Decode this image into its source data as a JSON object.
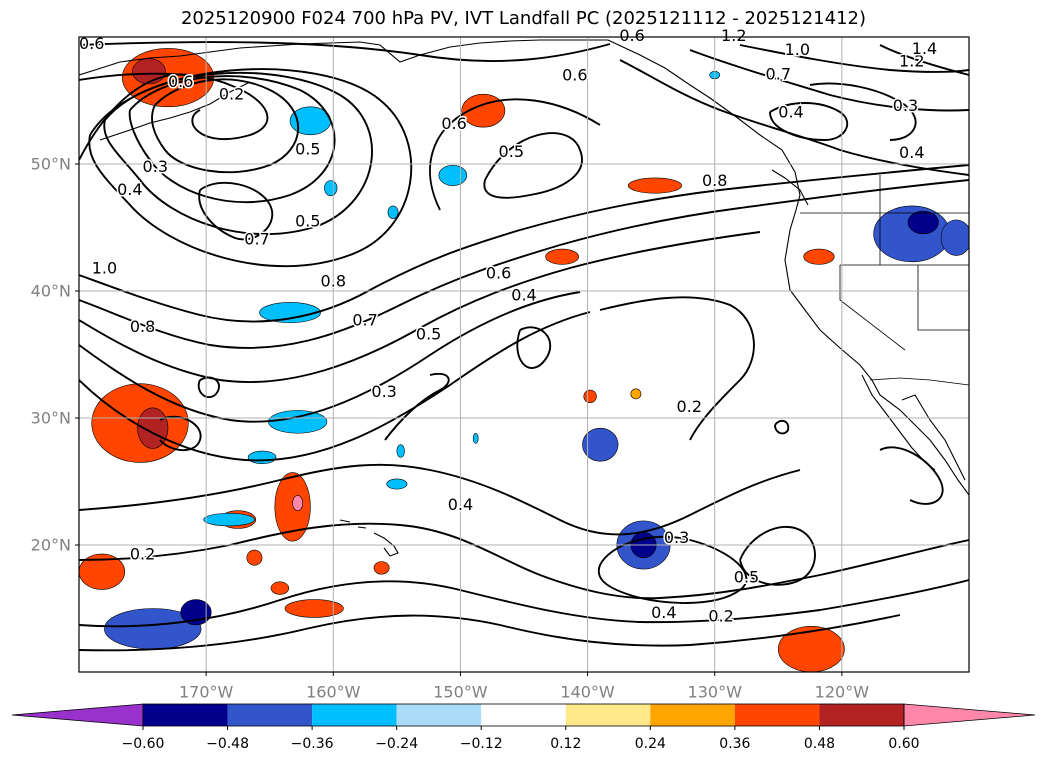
{
  "title": "2025120900 F024 700 hPa PV, IVT Landfall PC (2025121112 - 2025121412)",
  "map": {
    "lat_ticks": [
      "50°N",
      "40°N",
      "30°N",
      "20°N"
    ],
    "lon_ticks": [
      "170°W",
      "160°W",
      "150°W",
      "140°W",
      "130°W",
      "120°W"
    ],
    "lon_range_deg": [
      -180,
      -110
    ],
    "lat_range_deg": [
      10,
      60
    ]
  },
  "contour_labels": [
    {
      "text": "0.6",
      "lon": -179,
      "lat": 59.5
    },
    {
      "text": "0.6",
      "lon": -172,
      "lat": 56.5
    },
    {
      "text": "0.2",
      "lon": -168,
      "lat": 55.5
    },
    {
      "text": "0.3",
      "lon": -174,
      "lat": 49.8
    },
    {
      "text": "0.4",
      "lon": -176,
      "lat": 48
    },
    {
      "text": "0.5",
      "lon": -162,
      "lat": 51.2
    },
    {
      "text": "0.5",
      "lon": -162,
      "lat": 45.5
    },
    {
      "text": "0.7",
      "lon": -166,
      "lat": 44.1
    },
    {
      "text": "1.0",
      "lon": -178,
      "lat": 41.8
    },
    {
      "text": "0.8",
      "lon": -160,
      "lat": 40.8
    },
    {
      "text": "0.8",
      "lon": -175,
      "lat": 37.2
    },
    {
      "text": "0.7",
      "lon": -157.5,
      "lat": 37.7
    },
    {
      "text": "0.6",
      "lon": -147,
      "lat": 41.4
    },
    {
      "text": "0.4",
      "lon": -145,
      "lat": 39.7
    },
    {
      "text": "0.5",
      "lon": -152.5,
      "lat": 36.6
    },
    {
      "text": "0.6",
      "lon": -150.5,
      "lat": 53.2
    },
    {
      "text": "0.5",
      "lon": -146,
      "lat": 51
    },
    {
      "text": "0.6",
      "lon": -141,
      "lat": 57
    },
    {
      "text": "0.3",
      "lon": -156,
      "lat": 32.1
    },
    {
      "text": "0.4",
      "lon": -150,
      "lat": 23.2
    },
    {
      "text": "0.2",
      "lon": -175,
      "lat": 19.3
    },
    {
      "text": "0.2",
      "lon": -132,
      "lat": 30.9
    },
    {
      "text": "0.3",
      "lon": -133,
      "lat": 20.6
    },
    {
      "text": "0.4",
      "lon": -134,
      "lat": 14.7
    },
    {
      "text": "0.2",
      "lon": -129.5,
      "lat": 14.4
    },
    {
      "text": "0.5",
      "lon": -127.5,
      "lat": 17.5
    },
    {
      "text": "0.8",
      "lon": -130,
      "lat": 48.7
    },
    {
      "text": "0.4",
      "lon": -124,
      "lat": 54.1
    },
    {
      "text": "0.7",
      "lon": -125,
      "lat": 57.1
    },
    {
      "text": "1.0",
      "lon": -123.5,
      "lat": 59
    },
    {
      "text": "1.2",
      "lon": -128.5,
      "lat": 60.1
    },
    {
      "text": "1.2",
      "lon": -114.5,
      "lat": 58.1
    },
    {
      "text": "1.4",
      "lon": -113.5,
      "lat": 59.1
    },
    {
      "text": "0.3",
      "lon": -115,
      "lat": 54.6
    },
    {
      "text": "0.4",
      "lon": -114.5,
      "lat": 50.9
    },
    {
      "text": "0.6",
      "lon": -136.5,
      "lat": 60.1
    }
  ],
  "shaded_blobs": [
    {
      "lon": -173,
      "lat": 56.8,
      "rx": 3.6,
      "ry": 2.3,
      "level": 0.42
    },
    {
      "lon": -174.5,
      "lat": 57.3,
      "rx": 1.3,
      "ry": 1.0,
      "level": 0.5
    },
    {
      "lon": -148.2,
      "lat": 54.2,
      "rx": 1.7,
      "ry": 1.3,
      "level": 0.38
    },
    {
      "lon": -175.2,
      "lat": 29.6,
      "rx": 3.8,
      "ry": 3.1,
      "level": 0.42
    },
    {
      "lon": -174.2,
      "lat": 29.2,
      "rx": 1.2,
      "ry": 1.6,
      "level": 0.5
    },
    {
      "lon": -178.2,
      "lat": 17.9,
      "rx": 1.8,
      "ry": 1.4,
      "level": 0.38
    },
    {
      "lon": -163.2,
      "lat": 23.0,
      "rx": 1.4,
      "ry": 2.7,
      "level": 0.4
    },
    {
      "lon": -162.8,
      "lat": 23.3,
      "rx": 0.4,
      "ry": 0.6,
      "level": 0.62
    },
    {
      "lon": -167.5,
      "lat": 22.0,
      "rx": 1.4,
      "ry": 0.7,
      "level": 0.37
    },
    {
      "lon": -161.5,
      "lat": 15.0,
      "rx": 2.3,
      "ry": 0.7,
      "level": 0.37
    },
    {
      "lon": -164.2,
      "lat": 16.6,
      "rx": 0.7,
      "ry": 0.5,
      "level": 0.36
    },
    {
      "lon": -166.2,
      "lat": 19.0,
      "rx": 0.6,
      "ry": 0.6,
      "level": 0.37
    },
    {
      "lon": -142.0,
      "lat": 42.7,
      "rx": 1.3,
      "ry": 0.6,
      "level": 0.37
    },
    {
      "lon": -134.7,
      "lat": 48.3,
      "rx": 2.1,
      "ry": 0.6,
      "level": 0.36
    },
    {
      "lon": -122.4,
      "lat": 11.8,
      "rx": 2.6,
      "ry": 1.8,
      "level": 0.4
    },
    {
      "lon": -121.8,
      "lat": 42.7,
      "rx": 1.2,
      "ry": 0.6,
      "level": 0.36
    },
    {
      "lon": -139.8,
      "lat": 31.7,
      "rx": 0.5,
      "ry": 0.5,
      "level": 0.37
    },
    {
      "lon": -136.2,
      "lat": 31.9,
      "rx": 0.4,
      "ry": 0.4,
      "level": 0.3
    },
    {
      "lon": -156.2,
      "lat": 18.2,
      "rx": 0.6,
      "ry": 0.5,
      "level": 0.36
    },
    {
      "lon": -174.2,
      "lat": 13.4,
      "rx": 3.8,
      "ry": 1.6,
      "level": -0.4
    },
    {
      "lon": -170.8,
      "lat": 14.7,
      "rx": 1.2,
      "ry": 1.0,
      "level": -0.52
    },
    {
      "lon": -168.2,
      "lat": 22.0,
      "rx": 2.0,
      "ry": 0.5,
      "level": -0.3
    },
    {
      "lon": -162.8,
      "lat": 29.7,
      "rx": 2.3,
      "ry": 0.9,
      "level": -0.32
    },
    {
      "lon": -165.6,
      "lat": 26.9,
      "rx": 1.1,
      "ry": 0.5,
      "level": -0.3
    },
    {
      "lon": -163.4,
      "lat": 38.3,
      "rx": 2.4,
      "ry": 0.8,
      "level": -0.32
    },
    {
      "lon": -161.8,
      "lat": 53.4,
      "rx": 1.6,
      "ry": 1.1,
      "level": -0.34
    },
    {
      "lon": -160.2,
      "lat": 48.1,
      "rx": 0.5,
      "ry": 0.6,
      "level": -0.3
    },
    {
      "lon": -150.6,
      "lat": 49.1,
      "rx": 1.1,
      "ry": 0.8,
      "level": -0.32
    },
    {
      "lon": -155.3,
      "lat": 46.2,
      "rx": 0.4,
      "ry": 0.5,
      "level": -0.3
    },
    {
      "lon": -135.6,
      "lat": 20.0,
      "rx": 2.1,
      "ry": 1.9,
      "level": -0.44
    },
    {
      "lon": -135.6,
      "lat": 20.0,
      "rx": 1.0,
      "ry": 1.0,
      "level": -0.58
    },
    {
      "lon": -139.0,
      "lat": 27.9,
      "rx": 1.4,
      "ry": 1.3,
      "level": -0.38
    },
    {
      "lon": -114.5,
      "lat": 44.5,
      "rx": 3.0,
      "ry": 2.2,
      "level": -0.42
    },
    {
      "lon": -113.6,
      "lat": 45.4,
      "rx": 1.2,
      "ry": 0.9,
      "level": -0.55
    },
    {
      "lon": -111.0,
      "lat": 44.2,
      "rx": 1.2,
      "ry": 1.4,
      "level": -0.45
    },
    {
      "lon": -155.0,
      "lat": 24.8,
      "rx": 0.8,
      "ry": 0.4,
      "level": -0.3
    },
    {
      "lon": -148.8,
      "lat": 28.4,
      "rx": 0.2,
      "ry": 0.4,
      "level": -0.3
    },
    {
      "lon": -154.7,
      "lat": 27.4,
      "rx": 0.3,
      "ry": 0.5,
      "level": -0.3
    },
    {
      "lon": -130.0,
      "lat": 57.0,
      "rx": 0.4,
      "ry": 0.3,
      "level": -0.3
    }
  ],
  "colorbar": {
    "levels": [
      -0.6,
      -0.48,
      -0.36,
      -0.24,
      -0.12,
      0.12,
      0.24,
      0.36,
      0.48,
      0.6
    ],
    "tick_labels": [
      "−0.60",
      "−0.48",
      "−0.36",
      "−0.24",
      "−0.12",
      "0.12",
      "0.24",
      "0.36",
      "0.48",
      "0.60"
    ],
    "colors": [
      "#00008b",
      "#3355cc",
      "#00bfff",
      "#aadcf8",
      "#ffffff",
      "#ffe88a",
      "#ffa500",
      "#ff4500",
      "#b22222"
    ],
    "under_color": "#9932cc",
    "over_color": "#ff88aa"
  },
  "colors": {
    "contour": "#000000",
    "grid": "#b0b0b0",
    "tick_label": "#808080",
    "coast": "#000000"
  }
}
